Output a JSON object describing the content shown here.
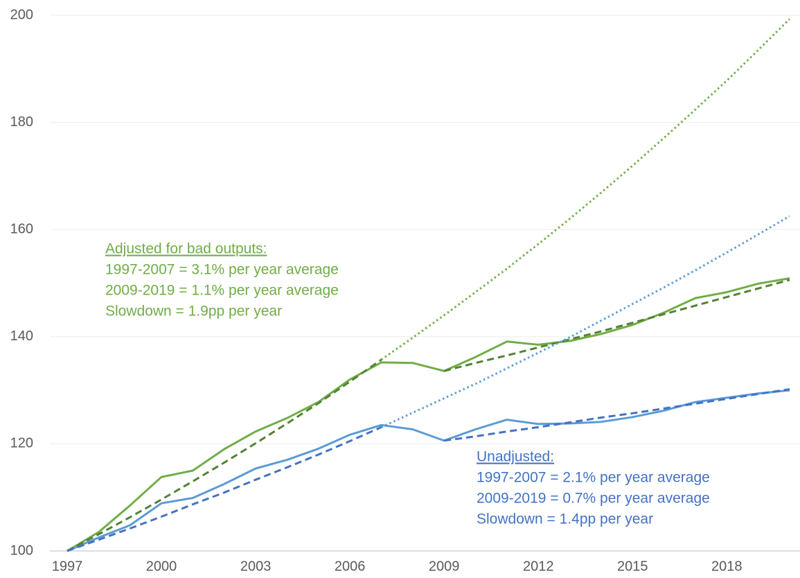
{
  "chart_data": {
    "type": "line",
    "x": [
      1997,
      1998,
      1999,
      2000,
      2001,
      2002,
      2003,
      2004,
      2005,
      2006,
      2007,
      2008,
      2009,
      2010,
      2011,
      2012,
      2013,
      2014,
      2015,
      2016,
      2017,
      2018,
      2019,
      2020
    ],
    "xlim": [
      1997,
      2020
    ],
    "xticks": [
      1997,
      2000,
      2003,
      2006,
      2009,
      2012,
      2015,
      2018
    ],
    "ylim": [
      100,
      200
    ],
    "yticks": [
      100,
      120,
      140,
      160,
      180,
      200
    ],
    "grid": true,
    "series": [
      {
        "color": "#70ad47",
        "style": "solid",
        "values": [
          100,
          103.5,
          108.5,
          113.8,
          115,
          119,
          122.3,
          124.8,
          127.8,
          132,
          135.2,
          135.1,
          133.6,
          136.2,
          139.1,
          138.5,
          139.2,
          140.5,
          142.2,
          144.5,
          147.2,
          148.3,
          149.9,
          150.9
        ]
      },
      {
        "color": "#5b9bd5",
        "style": "solid",
        "values": [
          100,
          102.5,
          104.8,
          108.9,
          109.9,
          112.5,
          115.4,
          117,
          119.1,
          121.7,
          123.5,
          122.7,
          120.6,
          122.7,
          124.5,
          123.7,
          123.8,
          124.1,
          125,
          126.2,
          127.8,
          128.6,
          129.4,
          130
        ]
      },
      {
        "color": "#548235",
        "style": "dashed",
        "values": [
          100,
          103.1,
          106.3,
          109.6,
          113.0,
          116.5,
          120.1,
          123.8,
          127.6,
          131.6,
          135.7,
          null,
          133.6,
          135.1,
          136.5,
          138.0,
          139.5,
          141.0,
          142.6,
          144.2,
          145.8,
          147.4,
          149.0,
          150.6
        ]
      },
      {
        "color": "#4472c4",
        "style": "dashed",
        "values": [
          100,
          102.1,
          104.2,
          106.4,
          108.7,
          110.9,
          113.3,
          115.6,
          118.0,
          120.5,
          123.1,
          null,
          120.6,
          121.4,
          122.3,
          123.1,
          124.0,
          124.9,
          125.7,
          126.6,
          127.5,
          128.4,
          129.3,
          130.2
        ]
      },
      {
        "color": "#70ad47",
        "style": "dotted",
        "values": [
          null,
          null,
          null,
          null,
          null,
          null,
          null,
          null,
          null,
          null,
          135.7,
          139.8,
          144.0,
          148.3,
          152.7,
          157.3,
          162.0,
          166.9,
          171.9,
          177.1,
          182.4,
          187.8,
          193.5,
          199.3
        ]
      },
      {
        "color": "#5b9bd5",
        "style": "dotted",
        "values": [
          null,
          null,
          null,
          null,
          null,
          null,
          null,
          null,
          null,
          null,
          123.1,
          125.8,
          128.5,
          131.2,
          134.1,
          137.0,
          139.9,
          143.0,
          146.1,
          149.2,
          152.4,
          155.7,
          159.1,
          162.5
        ]
      }
    ],
    "annotations": [
      {
        "color": "#70ad47",
        "lines": [
          "Adjusted for bad outputs:",
          "1997-2007 = 3.1% per year average",
          "2009-2019 = 1.1% per year average",
          "Slowdown = 1.9pp per year"
        ]
      },
      {
        "color": "#4472c4",
        "lines": [
          "Unadjusted:",
          "1997-2007 = 2.1% per year average",
          "2009-2019 = 0.7% per year average",
          "Slowdown = 1.4pp per year"
        ]
      }
    ]
  }
}
